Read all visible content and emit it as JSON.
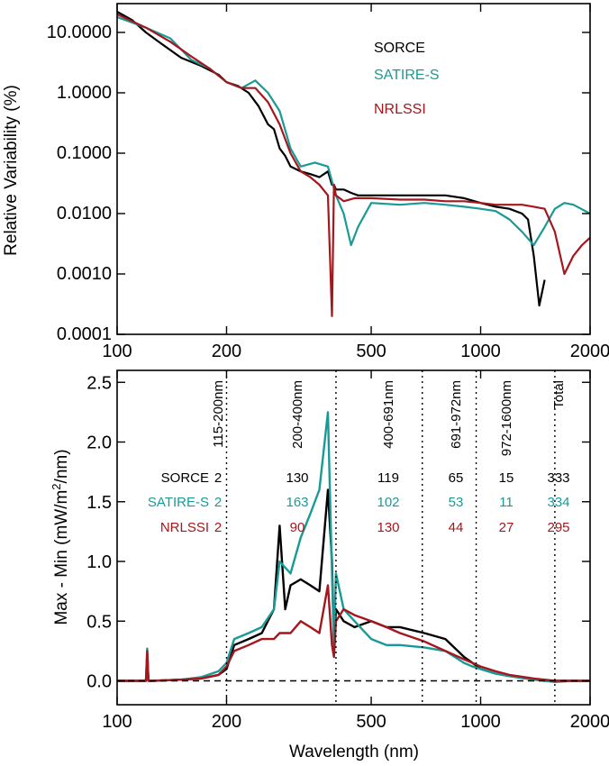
{
  "colors": {
    "sorce": "#000000",
    "satire": "#1a9a96",
    "nrlssi": "#a3171d"
  },
  "chart_data": [
    {
      "type": "line",
      "panel": "top",
      "xlabel": "",
      "ylabel": "Relative Variability (%)",
      "x_scale": "log",
      "y_scale": "log",
      "xlim": [
        100,
        2000
      ],
      "ylim": [
        0.0001,
        30
      ],
      "x_ticks": [
        100,
        200,
        500,
        1000,
        2000
      ],
      "x_tick_labels": [
        "100",
        "200",
        "500",
        "1000",
        "2000"
      ],
      "y_ticks": [
        0.0001,
        0.001,
        0.01,
        0.1,
        1,
        10
      ],
      "y_tick_labels": [
        "0.0001",
        "0.0010",
        "0.0100",
        "0.1000",
        "1.0000",
        "10.0000"
      ],
      "legend": [
        "SORCE",
        "SATIRE-S",
        "NRLSSI"
      ],
      "legend_position": "top-right",
      "series": [
        {
          "name": "SORCE",
          "color": "#000000",
          "x": [
            100,
            110,
            120,
            130,
            150,
            170,
            190,
            200,
            215,
            230,
            245,
            260,
            270,
            280,
            290,
            300,
            320,
            340,
            360,
            380,
            390,
            395,
            400,
            420,
            440,
            460,
            500,
            550,
            600,
            700,
            800,
            900,
            1000,
            1100,
            1200,
            1300,
            1350,
            1400,
            1450,
            1500
          ],
          "y": [
            22,
            16,
            10,
            7,
            3.8,
            2.8,
            2.0,
            1.5,
            1.3,
            1.0,
            0.6,
            0.3,
            0.25,
            0.12,
            0.09,
            0.06,
            0.05,
            0.045,
            0.04,
            0.05,
            0.03,
            0.03,
            0.025,
            0.025,
            0.022,
            0.02,
            0.02,
            0.02,
            0.02,
            0.02,
            0.02,
            0.018,
            0.015,
            0.013,
            0.012,
            0.01,
            0.008,
            0.002,
            0.0003,
            0.0008
          ]
        },
        {
          "name": "SATIRE-S",
          "color": "#1a9a96",
          "x": [
            100,
            120,
            140,
            160,
            180,
            200,
            220,
            240,
            260,
            280,
            300,
            320,
            350,
            380,
            400,
            420,
            440,
            460,
            500,
            600,
            700,
            800,
            900,
            1000,
            1100,
            1200,
            1300,
            1400,
            1500,
            1600,
            1700,
            1800,
            2000
          ],
          "y": [
            18,
            12,
            8,
            3.5,
            2.5,
            1.5,
            1.2,
            1.6,
            1.0,
            0.5,
            0.12,
            0.06,
            0.07,
            0.06,
            0.02,
            0.01,
            0.003,
            0.006,
            0.015,
            0.014,
            0.015,
            0.014,
            0.013,
            0.012,
            0.011,
            0.008,
            0.005,
            0.003,
            0.006,
            0.012,
            0.015,
            0.014,
            0.01
          ]
        },
        {
          "name": "NRLSSI",
          "color": "#a3171d",
          "x": [
            100,
            120,
            140,
            160,
            180,
            200,
            220,
            240,
            260,
            280,
            300,
            320,
            340,
            360,
            380,
            390,
            395,
            400,
            420,
            450,
            500,
            600,
            700,
            800,
            900,
            1000,
            1100,
            1200,
            1300,
            1400,
            1500,
            1600,
            1700,
            1800,
            1900,
            2000
          ],
          "y": [
            20,
            12,
            7,
            4,
            2.5,
            1.5,
            1.2,
            1.2,
            0.7,
            0.3,
            0.1,
            0.05,
            0.04,
            0.03,
            0.02,
            0.0002,
            0.03,
            0.02,
            0.016,
            0.018,
            0.018,
            0.017,
            0.017,
            0.016,
            0.016,
            0.015,
            0.014,
            0.014,
            0.014,
            0.013,
            0.012,
            0.005,
            0.001,
            0.002,
            0.003,
            0.004
          ]
        }
      ]
    },
    {
      "type": "line",
      "panel": "bottom",
      "xlabel": "Wavelength (nm)",
      "ylabel": "Max - Min (mW/m²/nm)",
      "x_scale": "log",
      "xlim": [
        100,
        2000
      ],
      "ylim": [
        -0.2,
        2.6
      ],
      "x_ticks": [
        100,
        200,
        500,
        1000,
        2000
      ],
      "x_tick_labels": [
        "100",
        "200",
        "500",
        "1000",
        "2000"
      ],
      "y_ticks": [
        0.0,
        0.5,
        1.0,
        1.5,
        2.0,
        2.5
      ],
      "y_tick_labels": [
        "0.0",
        "0.5",
        "1.0",
        "1.5",
        "2.0",
        "2.5"
      ],
      "band_boundaries": [
        200,
        400,
        691,
        972,
        1600
      ],
      "band_labels": [
        "115-200nm",
        "200-400nm",
        "400-691nm",
        "691-972nm",
        "972-1600nm",
        "Total"
      ],
      "table": {
        "rows": [
          {
            "name": "SORCE",
            "values": [
              "2",
              "130",
              "119",
              "65",
              "15",
              "333"
            ]
          },
          {
            "name": "SATIRE-S",
            "values": [
              "2",
              "163",
              "102",
              "53",
              "11",
              "334"
            ]
          },
          {
            "name": "NRLSSI",
            "values": [
              "2",
              "90",
              "130",
              "44",
              "27",
              "295"
            ]
          }
        ]
      },
      "series": [
        {
          "name": "SORCE",
          "color": "#000000",
          "x": [
            100,
            115,
            120,
            121,
            122,
            125,
            150,
            170,
            190,
            200,
            210,
            230,
            250,
            270,
            280,
            290,
            300,
            320,
            340,
            360,
            380,
            390,
            395,
            400,
            420,
            450,
            500,
            550,
            600,
            700,
            800,
            900,
            950,
            1000,
            1100,
            1200,
            1400,
            1600,
            1800,
            2000
          ],
          "y": [
            0,
            0,
            0,
            0.2,
            0,
            0,
            0.01,
            0.02,
            0.05,
            0.1,
            0.3,
            0.35,
            0.4,
            0.6,
            1.3,
            0.6,
            0.8,
            0.85,
            0.8,
            0.75,
            1.6,
            1.0,
            0.3,
            0.6,
            0.5,
            0.45,
            0.5,
            0.45,
            0.45,
            0.4,
            0.35,
            0.2,
            0.15,
            0.1,
            0.06,
            0.04,
            0.01,
            0.0,
            0.0,
            0.0
          ]
        },
        {
          "name": "SATIRE-S",
          "color": "#1a9a96",
          "x": [
            100,
            115,
            120,
            121,
            122,
            125,
            150,
            170,
            190,
            200,
            210,
            230,
            250,
            270,
            280,
            300,
            320,
            340,
            360,
            380,
            390,
            395,
            400,
            420,
            450,
            500,
            550,
            600,
            700,
            800,
            900,
            950,
            1000,
            1100,
            1200,
            1400,
            1600,
            1800,
            2000
          ],
          "y": [
            0,
            0,
            0,
            0.27,
            0,
            0,
            0.01,
            0.03,
            0.08,
            0.15,
            0.35,
            0.4,
            0.45,
            0.6,
            1.0,
            0.9,
            1.2,
            1.4,
            1.6,
            2.25,
            0.9,
            0.3,
            0.9,
            0.6,
            0.5,
            0.35,
            0.3,
            0.3,
            0.28,
            0.25,
            0.15,
            0.12,
            0.1,
            0.06,
            0.04,
            0.01,
            -0.01,
            0.0,
            0.0
          ]
        },
        {
          "name": "NRLSSI",
          "color": "#a3171d",
          "x": [
            100,
            115,
            120,
            121,
            122,
            125,
            150,
            170,
            190,
            200,
            210,
            230,
            250,
            270,
            280,
            300,
            320,
            340,
            360,
            380,
            390,
            395,
            400,
            420,
            450,
            500,
            550,
            600,
            700,
            800,
            900,
            950,
            1000,
            1100,
            1200,
            1400,
            1600,
            1800,
            2000
          ],
          "y": [
            0,
            0,
            0,
            0.25,
            0,
            0,
            0.01,
            0.02,
            0.05,
            0.12,
            0.25,
            0.3,
            0.35,
            0.35,
            0.4,
            0.4,
            0.5,
            0.45,
            0.4,
            0.8,
            0.3,
            0.2,
            0.5,
            0.6,
            0.55,
            0.5,
            0.45,
            0.4,
            0.33,
            0.25,
            0.18,
            0.15,
            0.12,
            0.08,
            0.05,
            0.02,
            0.0,
            0.0,
            0.0
          ]
        }
      ]
    }
  ]
}
